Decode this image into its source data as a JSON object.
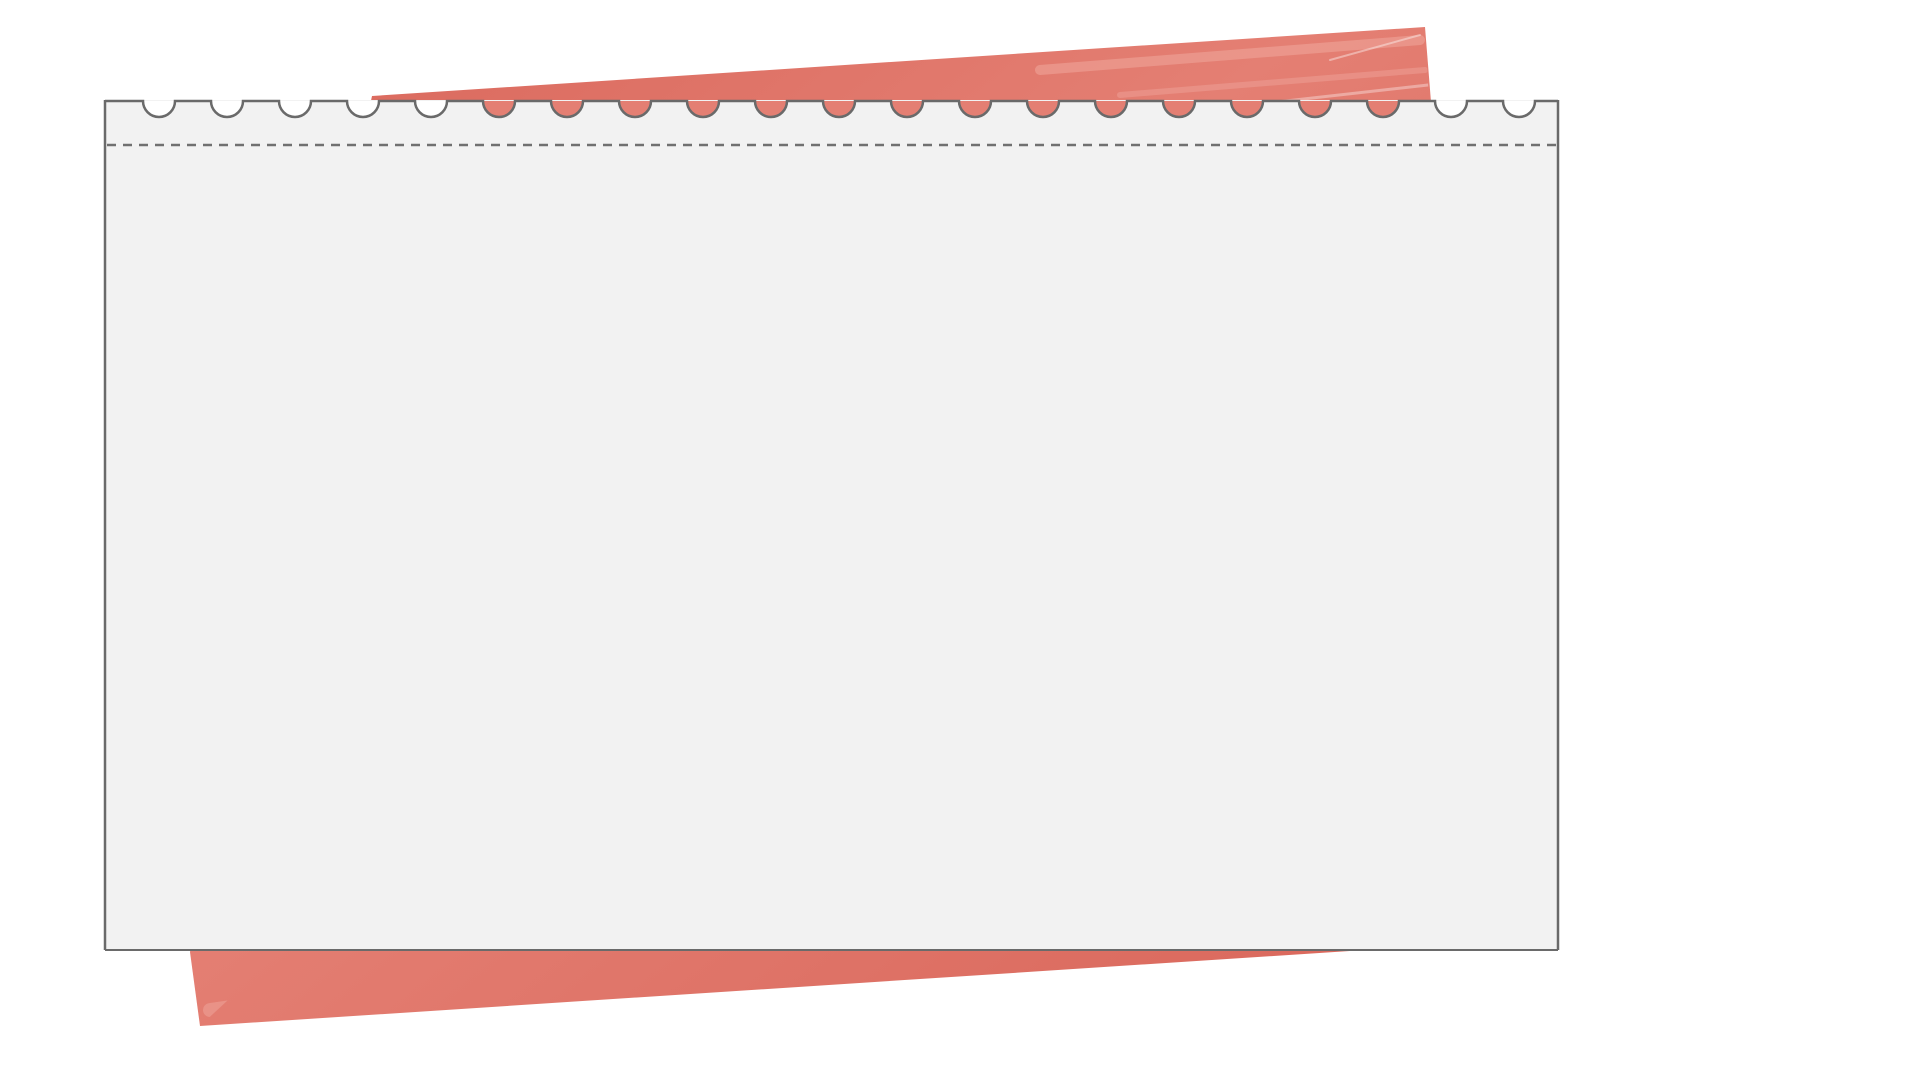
{
  "canvas": {
    "background_color": "#ffffff"
  },
  "backing_sheet": {
    "color": "#e47f73",
    "color_dark": "#d9665a",
    "color_light": "#f0a79d"
  },
  "notepad_page": {
    "fill_color": "#f2f2f2",
    "border_color": "#6a6a6a",
    "perforation_line_color": "#707070",
    "binding_hole_count": 21,
    "binding_hole_icon": "binding-hole-icon"
  }
}
